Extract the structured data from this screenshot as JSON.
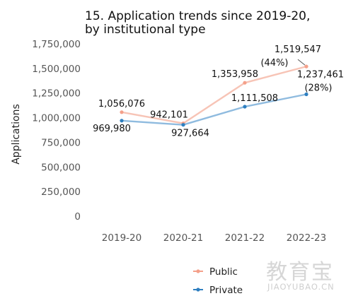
{
  "chart_data": {
    "type": "line",
    "title_lines": [
      "15. Application trends since 2019-20,",
      "by institutional type"
    ],
    "ylabel": "Applications",
    "xlabel": "",
    "categories": [
      "2019-20",
      "2020-21",
      "2021-22",
      "2022-23"
    ],
    "ylim": [
      0,
      1750000
    ],
    "yticks": [
      0,
      250000,
      500000,
      750000,
      1000000,
      1250000,
      1500000,
      1750000
    ],
    "ytick_labels": [
      "0",
      "250,000",
      "500,000",
      "750,000",
      "1,000,000",
      "1,250,000",
      "1,500,000",
      "1,750,000"
    ],
    "grid": false,
    "legend_position": "bottom-center",
    "series": [
      {
        "name": "Public",
        "color": "#f4a08a",
        "line_color": "#f7c4b6",
        "values": [
          1056076,
          942101,
          1353958,
          1519547
        ],
        "labels": [
          "1,056,076",
          "942,101",
          "1,353,958",
          "1,519,547"
        ],
        "annotation": "(44%)"
      },
      {
        "name": "Private",
        "color": "#2e7fc0",
        "line_color": "#8fbbdf",
        "values": [
          969980,
          927664,
          1111508,
          1237461
        ],
        "labels": [
          "969,980",
          "927,664",
          "1,111,508",
          "1,237,461"
        ],
        "annotation": "(28%)"
      }
    ]
  },
  "watermark": {
    "main": "教育宝",
    "sub": "JIAOYUBAO.CN"
  }
}
